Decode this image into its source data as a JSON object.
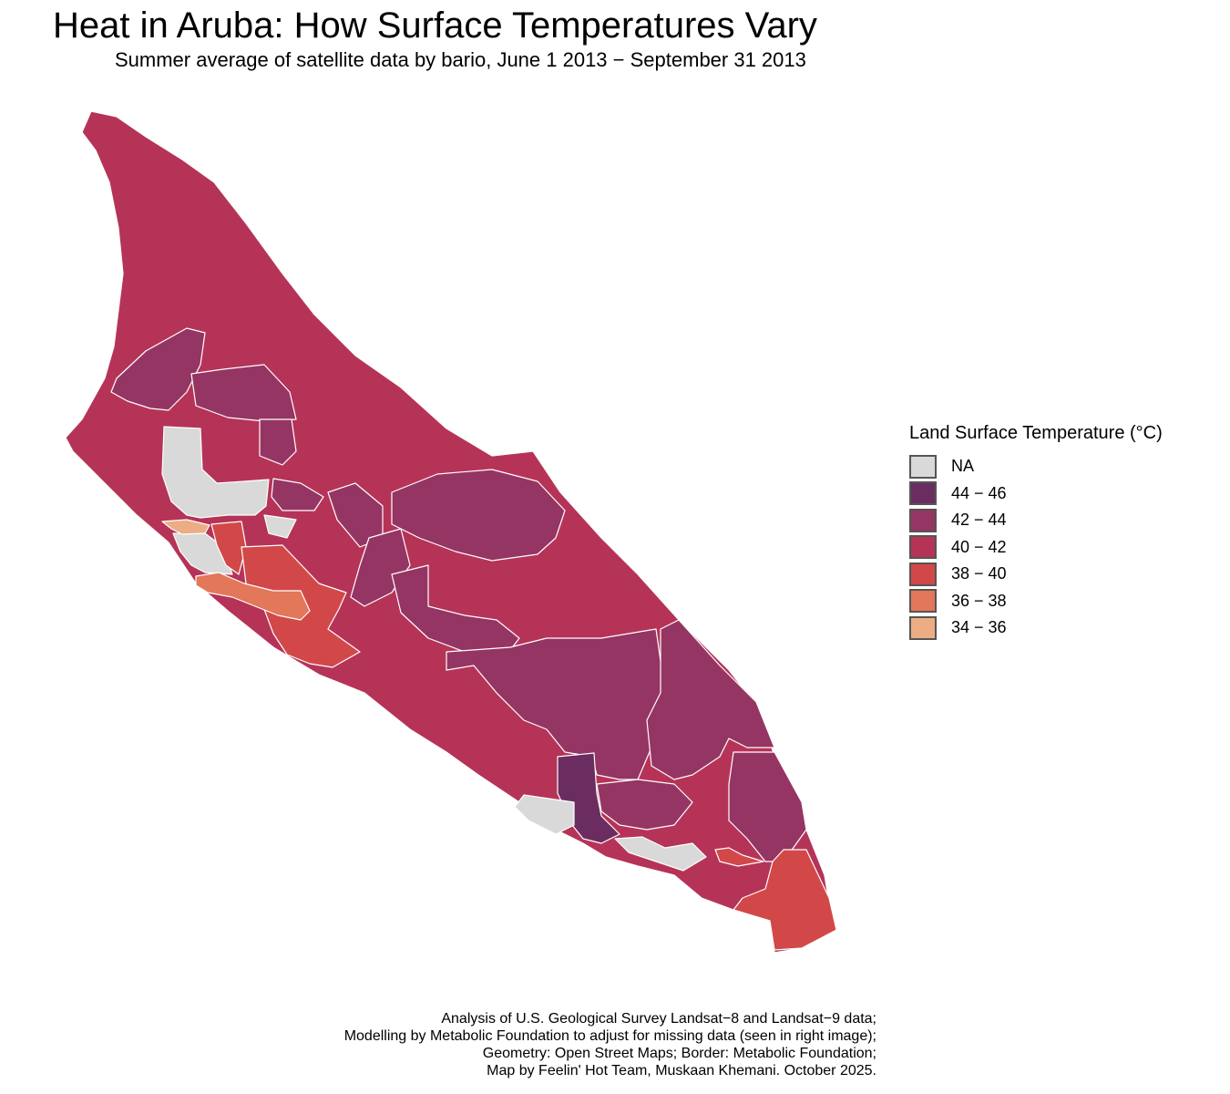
{
  "title": "Heat in Aruba: How Surface Temperatures Vary",
  "subtitle": "Summer average of satellite data by bario, June 1 2013 − September 31 2013",
  "legend": {
    "title": "Land Surface Temperature (°C)",
    "items": [
      {
        "label": "NA",
        "color": "#d9d9d9"
      },
      {
        "label": "44 − 46",
        "color": "#6b2d5f"
      },
      {
        "label": "42 − 44",
        "color": "#953563"
      },
      {
        "label": "40 − 42",
        "color": "#b63358"
      },
      {
        "label": "38 − 40",
        "color": "#d24848"
      },
      {
        "label": "36 − 38",
        "color": "#e2775a"
      },
      {
        "label": "34 − 36",
        "color": "#ecad84"
      }
    ]
  },
  "caption": [
    "Analysis of U.S. Geological Survey Landsat−8 and Landsat−9 data;",
    "Modelling by Metabolic Foundation to adjust for missing data (seen in right image);",
    "Geometry: Open Street Maps; Border: Metabolic Foundation;",
    "Map by Feelin' Hot Team, Muskaan Khemani. October 2025."
  ]
}
